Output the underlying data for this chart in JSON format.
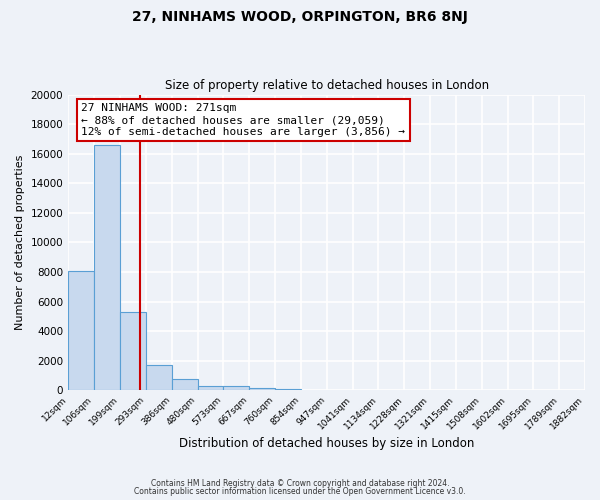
{
  "title": "27, NINHAMS WOOD, ORPINGTON, BR6 8NJ",
  "subtitle": "Size of property relative to detached houses in London",
  "xlabel": "Distribution of detached houses by size in London",
  "ylabel": "Number of detached properties",
  "bin_edges": [
    12,
    106,
    199,
    293,
    386,
    480,
    573,
    667,
    760,
    854,
    947,
    1041,
    1134,
    1228,
    1321,
    1415,
    1508,
    1602,
    1695,
    1789,
    1882
  ],
  "bin_heights": [
    8100,
    16600,
    5300,
    1750,
    750,
    320,
    270,
    170,
    130,
    0,
    0,
    0,
    0,
    0,
    0,
    0,
    0,
    0,
    0,
    0
  ],
  "bar_color": "#c8d9ee",
  "bar_edge_color": "#5a9fd4",
  "property_size": 271,
  "red_line_color": "#cc0000",
  "annotation_line1": "27 NINHAMS WOOD: 271sqm",
  "annotation_line2": "← 88% of detached houses are smaller (29,059)",
  "annotation_line3": "12% of semi-detached houses are larger (3,856) →",
  "annotation_box_color": "#ffffff",
  "annotation_box_edge": "#cc0000",
  "ylim": [
    0,
    20000
  ],
  "yticks": [
    0,
    2000,
    4000,
    6000,
    8000,
    10000,
    12000,
    14000,
    16000,
    18000,
    20000
  ],
  "tick_labels": [
    "12sqm",
    "106sqm",
    "199sqm",
    "293sqm",
    "386sqm",
    "480sqm",
    "573sqm",
    "667sqm",
    "760sqm",
    "854sqm",
    "947sqm",
    "1041sqm",
    "1134sqm",
    "1228sqm",
    "1321sqm",
    "1415sqm",
    "1508sqm",
    "1602sqm",
    "1695sqm",
    "1789sqm",
    "1882sqm"
  ],
  "footer1": "Contains HM Land Registry data © Crown copyright and database right 2024.",
  "footer2": "Contains public sector information licensed under the Open Government Licence v3.0.",
  "bg_color": "#eef2f8",
  "grid_color": "#ffffff",
  "figwidth": 6.0,
  "figheight": 5.0,
  "dpi": 100
}
